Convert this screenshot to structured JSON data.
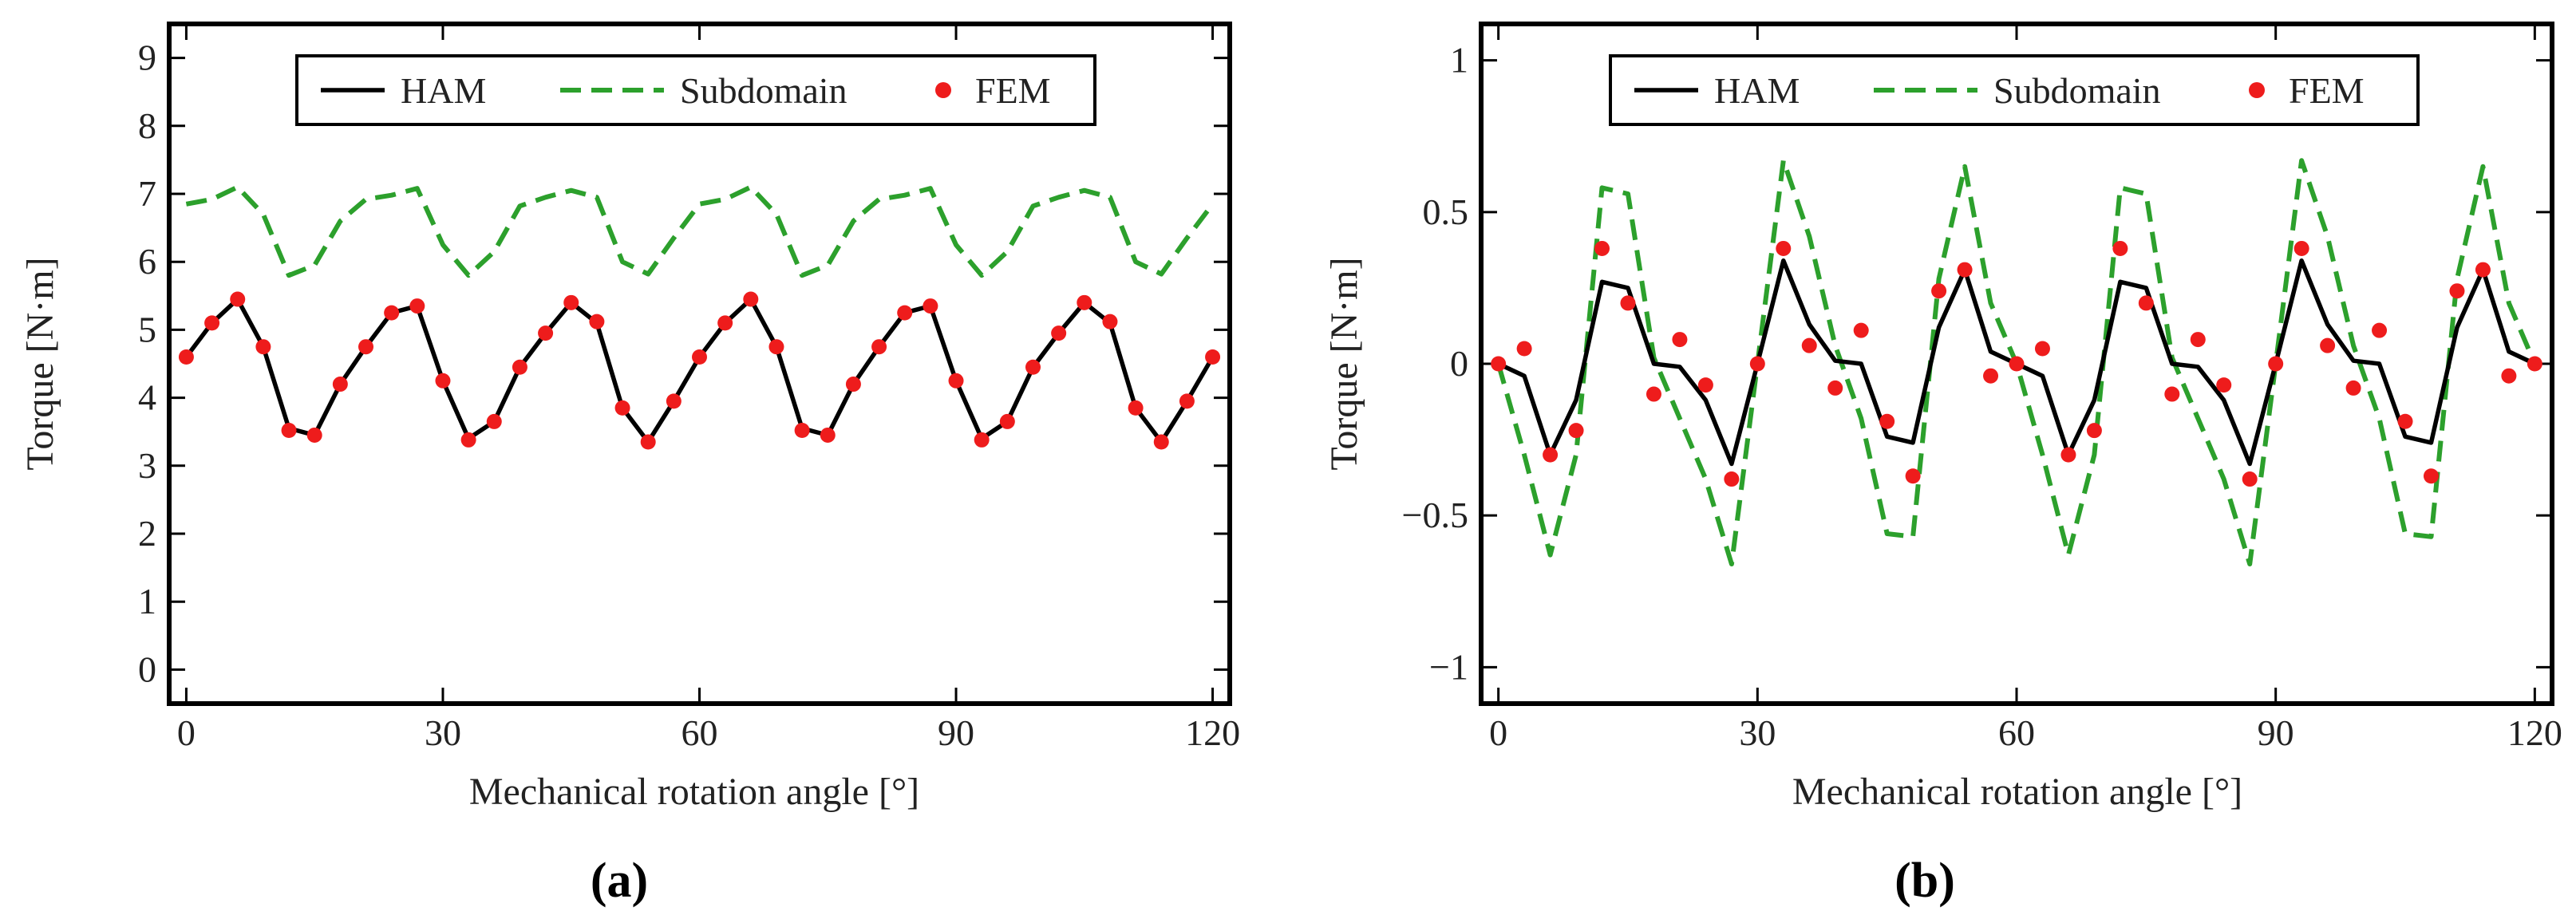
{
  "chart_data": [
    {
      "type": "line",
      "panel_label": "(a)",
      "panel_letter": "a",
      "title": "",
      "xlabel": "Mechanical rotation  angle [°]",
      "ylabel": "Torque [N·m]",
      "xlim": [
        -2,
        122
      ],
      "ylim": [
        -0.5,
        9.5
      ],
      "xticks": [
        0,
        30,
        60,
        90,
        120
      ],
      "yticks": [
        0,
        1,
        2,
        3,
        4,
        5,
        6,
        7,
        8,
        9
      ],
      "ytick_labels": [
        "0",
        "1",
        "2",
        "3",
        "4",
        "5",
        "6",
        "7",
        "8",
        "9"
      ],
      "grid": false,
      "legend_position": "top",
      "x": [
        0,
        3,
        6,
        9,
        12,
        15,
        18,
        21,
        24,
        27,
        30,
        33,
        36,
        39,
        42,
        45,
        48,
        51,
        54,
        57,
        60,
        63,
        66,
        69,
        72,
        75,
        78,
        81,
        84,
        87,
        90,
        93,
        96,
        99,
        102,
        105,
        108,
        111,
        114,
        117,
        120
      ],
      "series": [
        {
          "name": "HAM",
          "style": "solid",
          "color": "#000000",
          "values": [
            4.6,
            5.1,
            5.45,
            4.75,
            3.55,
            3.45,
            4.2,
            4.75,
            5.25,
            5.35,
            4.25,
            3.4,
            3.65,
            4.45,
            4.95,
            5.4,
            5.1,
            3.85,
            3.35,
            3.95,
            4.6,
            5.1,
            5.45,
            4.75,
            3.55,
            3.45,
            4.2,
            4.75,
            5.25,
            5.35,
            4.25,
            3.4,
            3.65,
            4.45,
            4.95,
            5.4,
            5.1,
            3.85,
            3.35,
            3.95,
            4.6
          ]
        },
        {
          "name": "Subdomain",
          "style": "dashed",
          "color": "#2ca02c",
          "values": [
            6.85,
            6.92,
            7.1,
            6.7,
            5.8,
            5.95,
            6.6,
            6.92,
            6.98,
            7.08,
            6.25,
            5.8,
            6.15,
            6.82,
            6.95,
            7.05,
            6.95,
            6.0,
            5.82,
            6.35,
            6.85,
            6.92,
            7.1,
            6.7,
            5.8,
            5.95,
            6.6,
            6.92,
            6.98,
            7.08,
            6.25,
            5.8,
            6.15,
            6.82,
            6.95,
            7.05,
            6.95,
            6.0,
            5.82,
            6.35,
            6.85
          ]
        },
        {
          "name": "FEM",
          "style": "points",
          "color": "#ee1c1c",
          "values": [
            4.6,
            5.1,
            5.45,
            4.75,
            3.52,
            3.45,
            4.2,
            4.75,
            5.25,
            5.35,
            4.25,
            3.38,
            3.65,
            4.45,
            4.95,
            5.4,
            5.12,
            3.85,
            3.35,
            3.95,
            4.6,
            5.1,
            5.45,
            4.75,
            3.52,
            3.45,
            4.2,
            4.75,
            5.25,
            5.35,
            4.25,
            3.38,
            3.65,
            4.45,
            4.95,
            5.4,
            5.12,
            3.85,
            3.35,
            3.95,
            4.6
          ]
        }
      ]
    },
    {
      "type": "line",
      "panel_label": "(b)",
      "panel_letter": "b",
      "title": "",
      "xlabel": "Mechanical rotation  angle [°]",
      "ylabel": "Torque [N·m]",
      "xlim": [
        -2,
        122
      ],
      "ylim": [
        -1.12,
        1.12
      ],
      "xticks": [
        0,
        30,
        60,
        90,
        120
      ],
      "yticks": [
        -1,
        -0.5,
        0,
        0.5,
        1
      ],
      "ytick_labels": [
        "−1",
        "−0.5",
        "0",
        "0.5",
        "1"
      ],
      "grid": false,
      "legend_position": "top",
      "x": [
        0,
        3,
        6,
        9,
        12,
        15,
        18,
        21,
        24,
        27,
        30,
        33,
        36,
        39,
        42,
        45,
        48,
        51,
        54,
        57,
        60,
        63,
        66,
        69,
        72,
        75,
        78,
        81,
        84,
        87,
        90,
        93,
        96,
        99,
        102,
        105,
        108,
        111,
        114,
        117,
        120
      ],
      "series": [
        {
          "name": "HAM",
          "style": "solid",
          "color": "#000000",
          "values": [
            0.0,
            -0.04,
            -0.3,
            -0.12,
            0.27,
            0.25,
            0.0,
            -0.01,
            -0.12,
            -0.33,
            0.0,
            0.34,
            0.13,
            0.01,
            0.0,
            -0.24,
            -0.26,
            0.12,
            0.31,
            0.04,
            0.0,
            -0.04,
            -0.3,
            -0.12,
            0.27,
            0.25,
            0.0,
            -0.01,
            -0.12,
            -0.33,
            0.0,
            0.34,
            0.13,
            0.01,
            0.0,
            -0.24,
            -0.26,
            0.12,
            0.31,
            0.04,
            0.0
          ]
        },
        {
          "name": "Subdomain",
          "style": "dashed",
          "color": "#2ca02c",
          "values": [
            0.0,
            -0.3,
            -0.63,
            -0.3,
            0.58,
            0.56,
            0.02,
            -0.18,
            -0.38,
            -0.66,
            0.0,
            0.67,
            0.42,
            0.06,
            -0.18,
            -0.56,
            -0.57,
            0.28,
            0.65,
            0.2,
            0.0,
            -0.3,
            -0.63,
            -0.3,
            0.58,
            0.56,
            0.02,
            -0.18,
            -0.38,
            -0.66,
            0.0,
            0.67,
            0.42,
            0.06,
            -0.18,
            -0.56,
            -0.57,
            0.28,
            0.65,
            0.2,
            0.0
          ]
        },
        {
          "name": "FEM",
          "style": "points",
          "color": "#ee1c1c",
          "values": [
            0.0,
            0.05,
            -0.3,
            -0.22,
            0.38,
            0.2,
            -0.1,
            0.08,
            -0.07,
            -0.38,
            0.0,
            0.38,
            0.06,
            -0.08,
            0.11,
            -0.19,
            -0.37,
            0.24,
            0.31,
            -0.04,
            0.0,
            0.05,
            -0.3,
            -0.22,
            0.38,
            0.2,
            -0.1,
            0.08,
            -0.07,
            -0.38,
            0.0,
            0.38,
            0.06,
            -0.08,
            0.11,
            -0.19,
            -0.37,
            0.24,
            0.31,
            -0.04,
            0.0
          ]
        }
      ]
    }
  ]
}
